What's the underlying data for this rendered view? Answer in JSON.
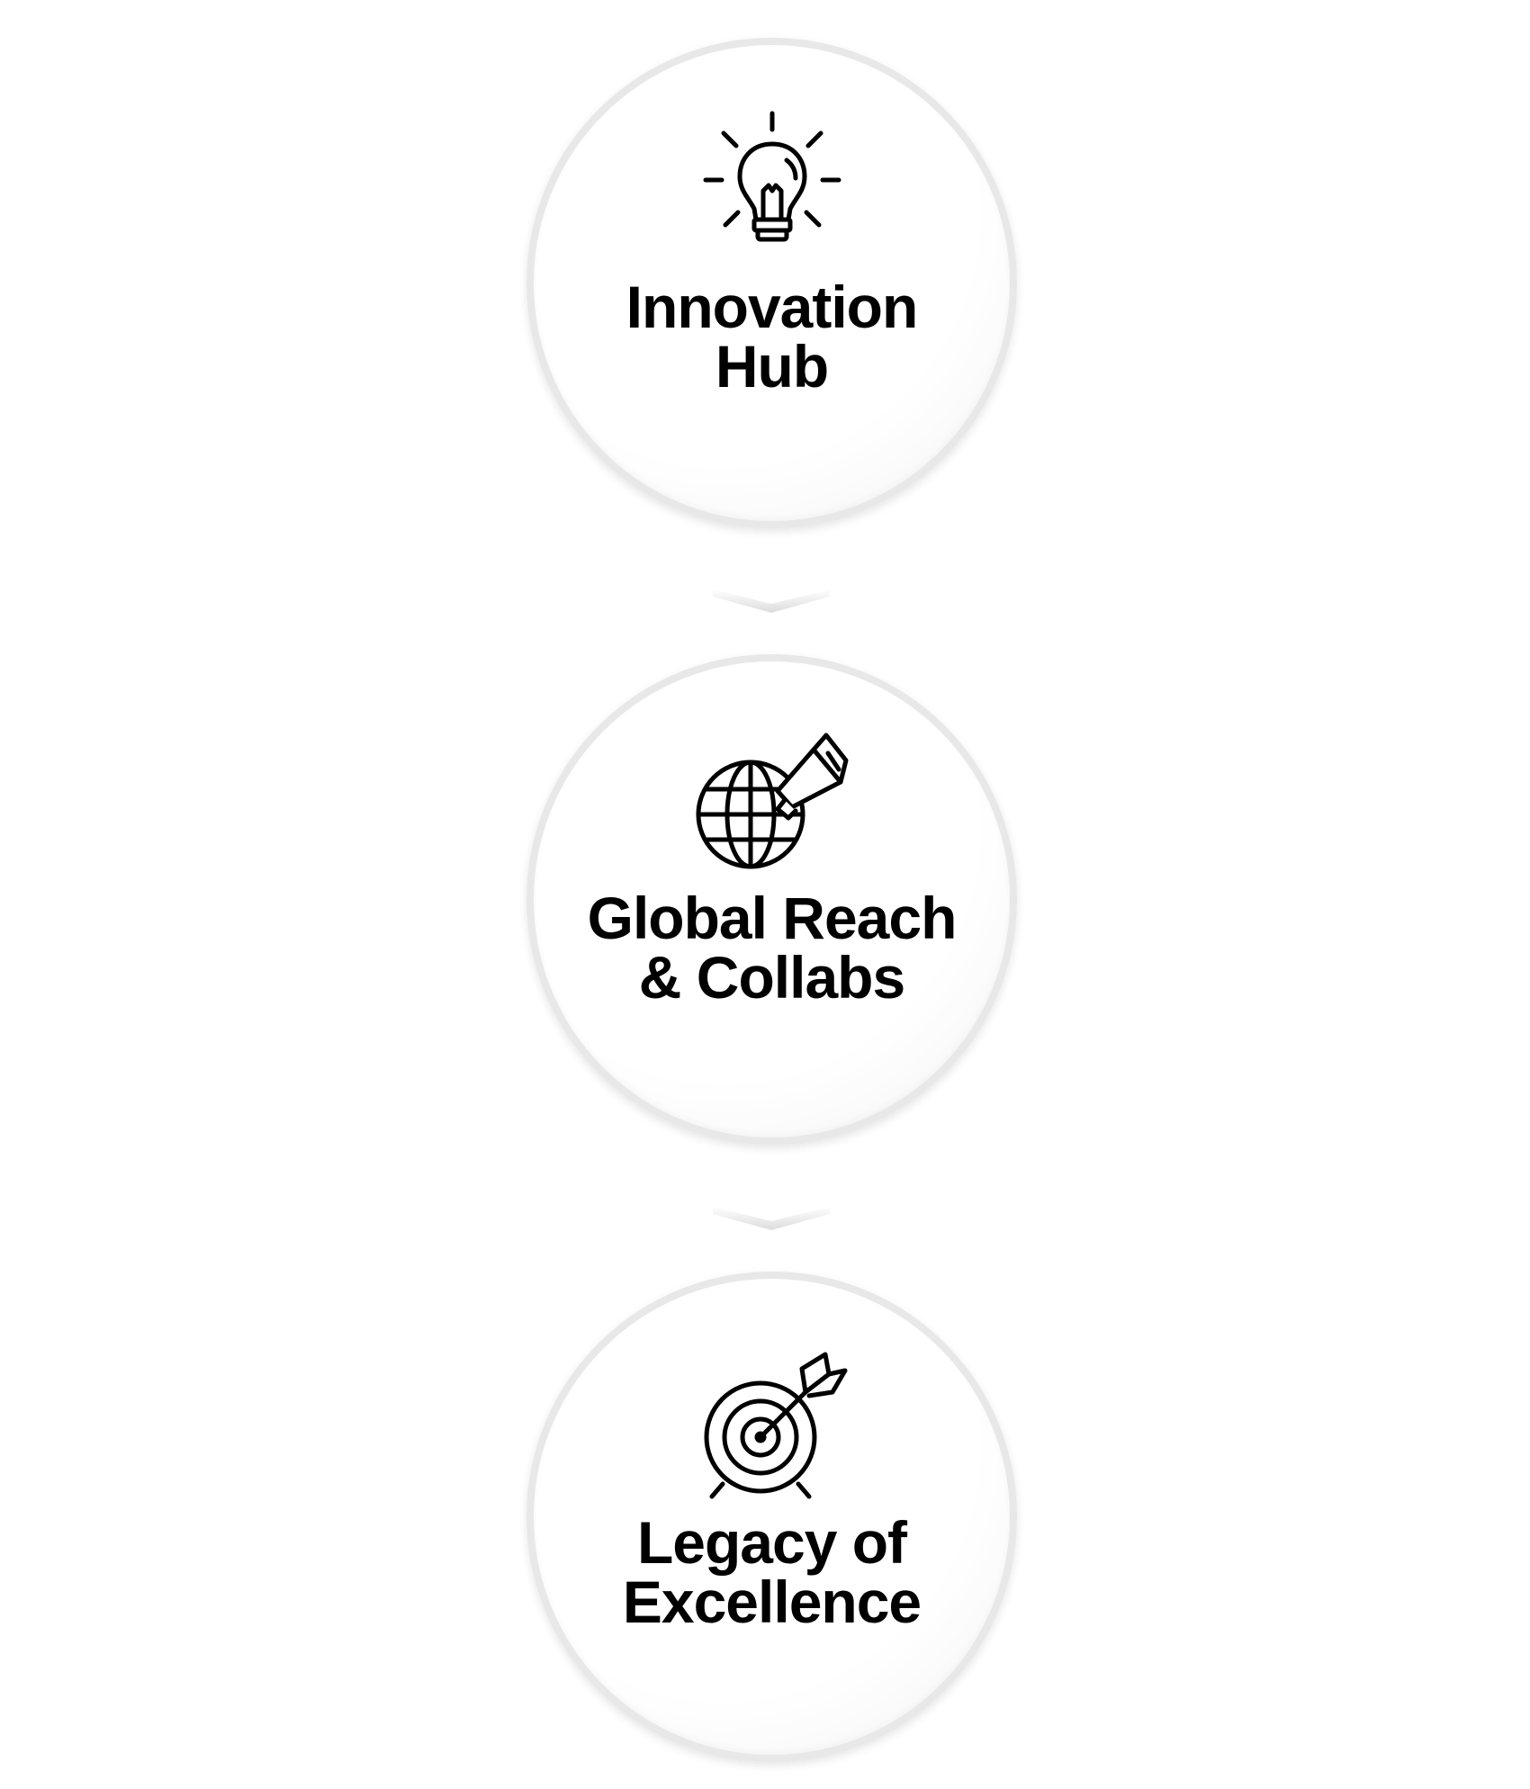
{
  "steps": [
    {
      "title_line1": "Innovation",
      "title_line2": "Hub",
      "icon": "lightbulb-icon"
    },
    {
      "title_line1": "Global Reach",
      "title_line2": "& Collabs",
      "icon": "globe-megaphone-icon"
    },
    {
      "title_line1": "Legacy of",
      "title_line2": "Excellence",
      "icon": "target-arrow-icon"
    }
  ],
  "colors": {
    "text": "#000000",
    "circle_border": "#e8e8e8",
    "background": "#ffffff"
  }
}
